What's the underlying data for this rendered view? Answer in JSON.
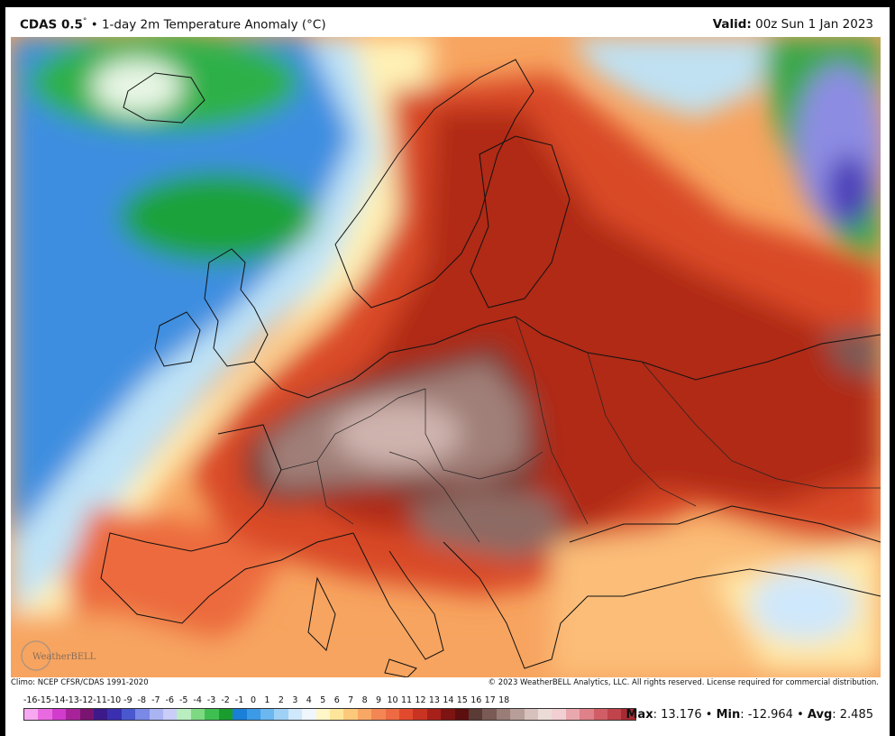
{
  "header": {
    "model": "CDAS 0.5",
    "degree": "°",
    "bullet": "•",
    "product": "1-day 2m Temperature Anomaly (°C)",
    "valid_label": "Valid:",
    "valid_value": "00z Sun 1 Jan 2023"
  },
  "footer": {
    "climo": "Climo: NCEP CFSR/CDAS 1991-2020",
    "copyright": "© 2023 WeatherBELL Analytics, LLC. All rights reserved. License required for commercial distribution.",
    "logo_text": "WeatherBELL"
  },
  "stats": {
    "max_label": "Max",
    "max_value": "13.176",
    "min_label": "Min",
    "min_value": "-12.964",
    "avg_label": "Avg",
    "avg_value": "2.485",
    "sep": "•"
  },
  "colorbar": {
    "ticks": [
      "-16",
      "-15",
      "-14",
      "-13",
      "-12",
      "-11",
      "-10",
      "-9",
      "-8",
      "-7",
      "-6",
      "-5",
      "-4",
      "-3",
      "-2",
      "-1",
      "0",
      "1",
      "2",
      "3",
      "4",
      "5",
      "6",
      "7",
      "8",
      "9",
      "10",
      "11",
      "12",
      "13",
      "14",
      "15",
      "16",
      "17",
      "18"
    ],
    "colors": [
      "#f7a8f0",
      "#e96ae0",
      "#d23ccc",
      "#a8239a",
      "#7a1470",
      "#3d1a8a",
      "#3a2fb0",
      "#4a58cf",
      "#7a88e6",
      "#aab4f2",
      "#c9cdf7",
      "#b9eec0",
      "#7ed983",
      "#3fbf52",
      "#1a9c2e",
      "#1a7fd6",
      "#3c9ae6",
      "#6bb7f0",
      "#9fd1f7",
      "#cfe8fb",
      "#f0f7fc",
      "#fff7c8",
      "#fde69a",
      "#fcc97a",
      "#f9a765",
      "#f48653",
      "#ee6a42",
      "#e24a2e",
      "#c93322",
      "#a8201a",
      "#7e1412",
      "#5c0f0e",
      "#5a3b36",
      "#7a5a54",
      "#9a7d77",
      "#b89e98",
      "#d6c1bc",
      "#ecdcd8",
      "#f2cfd2",
      "#e9a8ad",
      "#de8188",
      "#d15e66",
      "#c1434b",
      "#a82a33"
    ]
  },
  "colors": {
    "frame_bg": "#ffffff",
    "outer_bg": "#000000",
    "ocean_warm": "#f9c27e",
    "hot_core": "#8f1b12",
    "extreme": "#6e4a44",
    "cold": "#2f7fdc",
    "very_cold": "#1aa33a"
  }
}
